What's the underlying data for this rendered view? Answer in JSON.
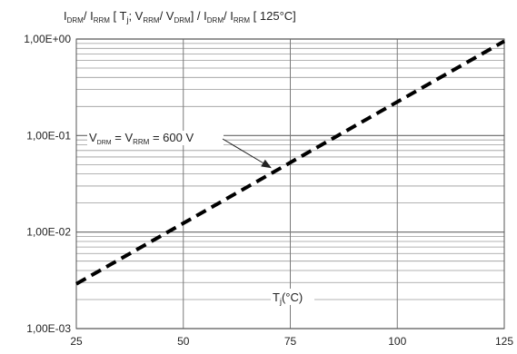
{
  "chart_data": {
    "type": "line",
    "title_parts": {
      "i1": "I",
      "drm1": "DRM",
      "sep1": "/ I",
      "rrm1": "RRM",
      "tj_open": " [ T",
      "j1": "j",
      "sep2": "; V",
      "rrm2": "RRM",
      "sep3": "/ V",
      "drm2": "DRM",
      "sep4": "] / I",
      "drm3": "DRM",
      "sep5": "/ I",
      "rrm3": "RRM",
      "end": " [ 125°C]"
    },
    "xlabel_parts": {
      "t": "T",
      "j": "j",
      "unit": "(°C)"
    },
    "annotation_parts": {
      "v1": "V",
      "drm": "DRM",
      "eq1": " = V",
      "rrm": "RRM",
      "eq2": " = 600 V"
    },
    "x_ticks": [
      "25",
      "50",
      "75",
      "100",
      "125"
    ],
    "y_ticks": [
      "1,00E-03",
      "1,00E-02",
      "1,00E-01",
      "1,00E+00"
    ],
    "xlim": [
      25,
      125
    ],
    "ylim": [
      0.001,
      1
    ],
    "y_scale": "log",
    "grid": true,
    "series": [
      {
        "x": [
          25,
          125
        ],
        "y": [
          0.0029,
          0.95
        ],
        "style": "dashed",
        "color": "#000000"
      }
    ],
    "annotation_arrow_target": {
      "x": 71,
      "y": 0.045
    }
  }
}
